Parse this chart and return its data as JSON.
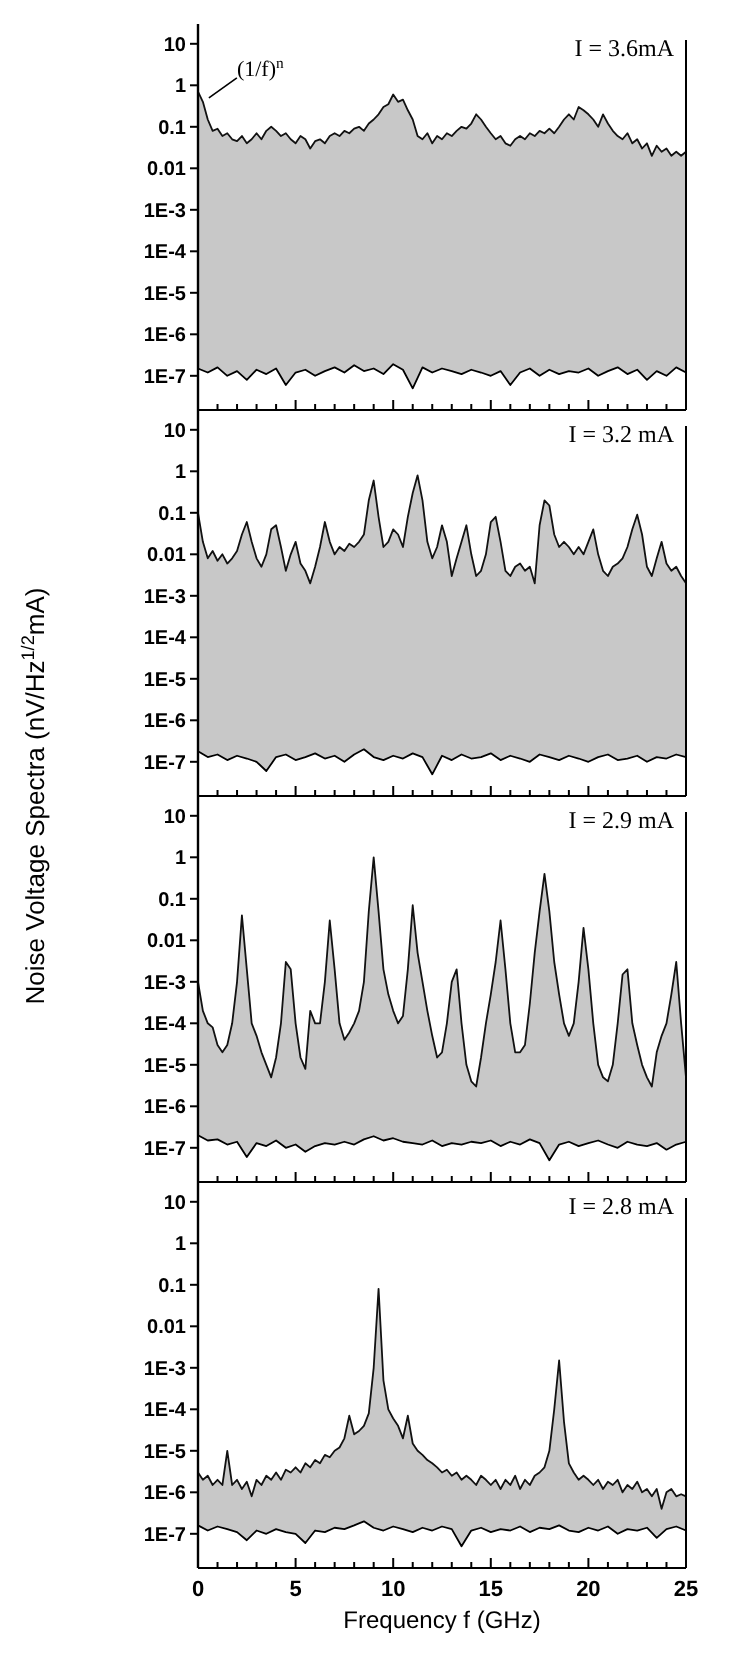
{
  "chart_data": [
    {
      "type": "area",
      "title": "I = 3.6mA",
      "log": "y",
      "tick_labels": "y",
      "xlim": [
        0,
        25
      ],
      "ylim": [
        1.5e-08,
        30
      ],
      "xticks": [
        0,
        {
          "value": 1,
          "label": null
        },
        {
          "value": 2,
          "label": null
        },
        {
          "value": 3,
          "label": null
        },
        {
          "value": 4,
          "label": null
        },
        5,
        {
          "value": 6,
          "label": null
        },
        {
          "value": 7,
          "label": null
        },
        {
          "value": 8,
          "label": null
        },
        {
          "value": 9,
          "label": null
        },
        10,
        {
          "value": 11,
          "label": null
        },
        {
          "value": 12,
          "label": null
        },
        {
          "value": 13,
          "label": null
        },
        {
          "value": 14,
          "label": null
        },
        15,
        {
          "value": 16,
          "label": null
        },
        {
          "value": 17,
          "label": null
        },
        {
          "value": 18,
          "label": null
        },
        {
          "value": 19,
          "label": null
        },
        20,
        {
          "value": 21,
          "label": null
        },
        {
          "value": 22,
          "label": null
        },
        {
          "value": 23,
          "label": null
        },
        {
          "value": 24,
          "label": null
        },
        25
      ],
      "yticks": [
        10,
        1,
        0.1,
        0.01,
        {
          "value": 0.001,
          "label": "1E-3"
        },
        {
          "value": 0.0001,
          "label": "1E-4"
        },
        {
          "value": 1e-05,
          "label": "1E-5"
        },
        {
          "value": 1e-06,
          "label": "1E-6"
        },
        {
          "value": 1e-07,
          "label": "1E-7"
        }
      ],
      "annotations": [
        {
          "text": "(1/f)$^{n}$",
          "x": 0.25,
          "y": 0.4
        }
      ],
      "x": [
        0,
        0.25,
        0.5,
        0.75,
        1,
        1.25,
        1.5,
        1.75,
        2,
        2.25,
        2.5,
        2.75,
        3,
        3.25,
        3.5,
        3.75,
        4,
        4.25,
        4.5,
        4.75,
        5,
        5.25,
        5.5,
        5.75,
        6,
        6.25,
        6.5,
        6.75,
        7,
        7.25,
        7.5,
        7.75,
        8,
        8.25,
        8.5,
        8.75,
        9,
        9.25,
        9.5,
        9.75,
        10,
        10.25,
        10.5,
        10.75,
        11,
        11.25,
        11.5,
        11.75,
        12,
        12.25,
        12.5,
        12.75,
        13,
        13.25,
        13.5,
        13.75,
        14,
        14.25,
        14.5,
        14.75,
        15,
        15.25,
        15.5,
        15.75,
        16,
        16.25,
        16.5,
        16.75,
        17,
        17.25,
        17.5,
        17.75,
        18,
        18.25,
        18.5,
        18.75,
        19,
        19.25,
        19.5,
        19.75,
        20,
        20.25,
        20.5,
        20.75,
        21,
        21.25,
        21.5,
        21.75,
        22,
        22.25,
        22.5,
        22.75,
        23,
        23.25,
        23.5,
        23.75,
        24,
        24.25,
        24.5,
        24.75,
        25
      ],
      "series": [
        {
          "color": "#c8c8c8",
          "values": [
            0.7,
            0.4,
            0.15,
            0.08,
            0.09,
            0.06,
            0.07,
            0.05,
            0.045,
            0.06,
            0.04,
            0.05,
            0.07,
            0.05,
            0.08,
            0.1,
            0.08,
            0.06,
            0.07,
            0.05,
            0.04,
            0.06,
            0.05,
            0.03,
            0.045,
            0.05,
            0.04,
            0.06,
            0.07,
            0.06,
            0.08,
            0.07,
            0.09,
            0.1,
            0.08,
            0.12,
            0.15,
            0.2,
            0.3,
            0.35,
            0.6,
            0.4,
            0.45,
            0.25,
            0.15,
            0.06,
            0.05,
            0.07,
            0.04,
            0.06,
            0.05,
            0.07,
            0.06,
            0.08,
            0.1,
            0.09,
            0.12,
            0.2,
            0.15,
            0.1,
            0.07,
            0.05,
            0.06,
            0.04,
            0.035,
            0.05,
            0.06,
            0.05,
            0.07,
            0.06,
            0.08,
            0.07,
            0.09,
            0.07,
            0.1,
            0.15,
            0.2,
            0.15,
            0.3,
            0.25,
            0.2,
            0.15,
            0.1,
            0.2,
            0.12,
            0.08,
            0.06,
            0.05,
            0.07,
            0.04,
            0.05,
            0.03,
            0.04,
            0.02,
            0.035,
            0.025,
            0.03,
            0.02,
            0.025,
            0.02,
            0.025
          ]
        },
        {
          "type": "line",
          "color": "#000000",
          "x": [
            0,
            0.5,
            1,
            1.5,
            2,
            2.5,
            3,
            3.5,
            4,
            4.5,
            5,
            5.5,
            6,
            6.5,
            7,
            7.5,
            8,
            8.5,
            9,
            9.5,
            10,
            10.5,
            11,
            11.5,
            12,
            12.5,
            13,
            13.5,
            14,
            14.5,
            15,
            15.5,
            16,
            16.5,
            17,
            17.5,
            18,
            18.5,
            19,
            19.5,
            20,
            20.5,
            21,
            21.5,
            22,
            22.5,
            23,
            23.5,
            24,
            24.5,
            25
          ],
          "values": [
            1.5e-07,
            1.2e-07,
            1.6e-07,
            1e-07,
            1.3e-07,
            8e-08,
            1.4e-07,
            1.1e-07,
            1.5e-07,
            6e-08,
            1.2e-07,
            1.4e-07,
            1e-07,
            1.3e-07,
            1.6e-07,
            1.2e-07,
            1.8e-07,
            1.3e-07,
            1.5e-07,
            1.1e-07,
            1.9e-07,
            1.4e-07,
            5e-08,
            1.6e-07,
            1.2e-07,
            1.5e-07,
            1.3e-07,
            1.1e-07,
            1.4e-07,
            1.2e-07,
            1e-07,
            1.3e-07,
            6e-08,
            1.2e-07,
            1.5e-07,
            1e-07,
            1.4e-07,
            1.1e-07,
            1.3e-07,
            1.2e-07,
            1.5e-07,
            1e-07,
            1.3e-07,
            1.6e-07,
            1.1e-07,
            1.4e-07,
            8e-08,
            1.3e-07,
            1e-07,
            1.6e-07,
            1.2e-07
          ]
        }
      ]
    },
    {
      "type": "area",
      "title": "I = 3.2 mA",
      "ylabel": "Noise Voltage Spectra  (nV/Hz$^{1/2}$mA)",
      "log": "y",
      "tick_labels": "y",
      "xlim": [
        0,
        25
      ],
      "ylim": [
        1.5e-08,
        30
      ],
      "xticks": [
        0,
        {
          "value": 1,
          "label": null
        },
        {
          "value": 2,
          "label": null
        },
        {
          "value": 3,
          "label": null
        },
        {
          "value": 4,
          "label": null
        },
        5,
        {
          "value": 6,
          "label": null
        },
        {
          "value": 7,
          "label": null
        },
        {
          "value": 8,
          "label": null
        },
        {
          "value": 9,
          "label": null
        },
        10,
        {
          "value": 11,
          "label": null
        },
        {
          "value": 12,
          "label": null
        },
        {
          "value": 13,
          "label": null
        },
        {
          "value": 14,
          "label": null
        },
        15,
        {
          "value": 16,
          "label": null
        },
        {
          "value": 17,
          "label": null
        },
        {
          "value": 18,
          "label": null
        },
        {
          "value": 19,
          "label": null
        },
        20,
        {
          "value": 21,
          "label": null
        },
        {
          "value": 22,
          "label": null
        },
        {
          "value": 23,
          "label": null
        },
        {
          "value": 24,
          "label": null
        },
        25
      ],
      "yticks": [
        10,
        1,
        0.1,
        0.01,
        {
          "value": 0.001,
          "label": "1E-3"
        },
        {
          "value": 0.0001,
          "label": "1E-4"
        },
        {
          "value": 1e-05,
          "label": "1E-5"
        },
        {
          "value": 1e-06,
          "label": "1E-6"
        },
        {
          "value": 1e-07,
          "label": "1E-7"
        }
      ],
      "x": [
        0,
        0.25,
        0.5,
        0.75,
        1,
        1.25,
        1.5,
        1.75,
        2,
        2.25,
        2.5,
        2.75,
        3,
        3.25,
        3.5,
        3.75,
        4,
        4.25,
        4.5,
        4.75,
        5,
        5.25,
        5.5,
        5.75,
        6,
        6.25,
        6.5,
        6.75,
        7,
        7.25,
        7.5,
        7.75,
        8,
        8.25,
        8.5,
        8.75,
        9,
        9.25,
        9.5,
        9.75,
        10,
        10.25,
        10.5,
        10.75,
        11,
        11.25,
        11.5,
        11.75,
        12,
        12.25,
        12.5,
        12.75,
        13,
        13.25,
        13.5,
        13.75,
        14,
        14.25,
        14.5,
        14.75,
        15,
        15.25,
        15.5,
        15.75,
        16,
        16.25,
        16.5,
        16.75,
        17,
        17.25,
        17.5,
        17.75,
        18,
        18.25,
        18.5,
        18.75,
        19,
        19.25,
        19.5,
        19.75,
        20,
        20.25,
        20.5,
        20.75,
        21,
        21.25,
        21.5,
        21.75,
        22,
        22.25,
        22.5,
        22.75,
        23,
        23.25,
        23.5,
        23.75,
        24,
        24.25,
        24.5,
        24.75,
        25
      ],
      "series": [
        {
          "color": "#c8c8c8",
          "values": [
            0.1,
            0.02,
            0.008,
            0.012,
            0.007,
            0.01,
            0.006,
            0.008,
            0.012,
            0.03,
            0.06,
            0.02,
            0.008,
            0.005,
            0.01,
            0.04,
            0.05,
            0.015,
            0.004,
            0.01,
            0.02,
            0.006,
            0.004,
            0.002,
            0.005,
            0.015,
            0.06,
            0.02,
            0.01,
            0.015,
            0.012,
            0.018,
            0.015,
            0.02,
            0.03,
            0.2,
            0.6,
            0.08,
            0.015,
            0.02,
            0.04,
            0.03,
            0.015,
            0.08,
            0.3,
            0.8,
            0.2,
            0.02,
            0.008,
            0.015,
            0.05,
            0.02,
            0.003,
            0.008,
            0.02,
            0.05,
            0.01,
            0.003,
            0.004,
            0.01,
            0.06,
            0.08,
            0.02,
            0.004,
            0.003,
            0.005,
            0.006,
            0.004,
            0.005,
            0.002,
            0.05,
            0.2,
            0.15,
            0.03,
            0.015,
            0.02,
            0.015,
            0.01,
            0.015,
            0.01,
            0.02,
            0.04,
            0.01,
            0.004,
            0.003,
            0.005,
            0.006,
            0.008,
            0.015,
            0.04,
            0.09,
            0.03,
            0.005,
            0.003,
            0.008,
            0.02,
            0.006,
            0.004,
            0.005,
            0.003,
            0.002
          ]
        },
        {
          "type": "line",
          "color": "#000000",
          "x": [
            0,
            0.5,
            1,
            1.5,
            2,
            2.5,
            3,
            3.5,
            4,
            4.5,
            5,
            5.5,
            6,
            6.5,
            7,
            7.5,
            8,
            8.5,
            9,
            9.5,
            10,
            10.5,
            11,
            11.5,
            12,
            12.5,
            13,
            13.5,
            14,
            14.5,
            15,
            15.5,
            16,
            16.5,
            17,
            17.5,
            18,
            18.5,
            19,
            19.5,
            20,
            20.5,
            21,
            21.5,
            22,
            22.5,
            23,
            23.5,
            24,
            24.5,
            25
          ],
          "values": [
            1.8e-07,
            1.3e-07,
            1.5e-07,
            1.1e-07,
            1.4e-07,
            1.2e-07,
            1e-07,
            6e-08,
            1.3e-07,
            1.5e-07,
            1.1e-07,
            1.3e-07,
            1.6e-07,
            1.2e-07,
            1.4e-07,
            1e-07,
            1.5e-07,
            2e-07,
            1.3e-07,
            1.1e-07,
            1.4e-07,
            1.2e-07,
            1.6e-07,
            1.3e-07,
            5e-08,
            1.4e-07,
            1.1e-07,
            1.5e-07,
            1.2e-07,
            1.3e-07,
            1.6e-07,
            1.1e-07,
            1.4e-07,
            1.2e-07,
            1e-07,
            1.5e-07,
            1.3e-07,
            1.1e-07,
            1.4e-07,
            1.2e-07,
            1e-07,
            1.3e-07,
            1.5e-07,
            1.1e-07,
            1.2e-07,
            1.4e-07,
            1e-07,
            1.3e-07,
            1.2e-07,
            1.5e-07,
            1.3e-07
          ]
        }
      ]
    },
    {
      "type": "area",
      "title": "I = 2.9 mA",
      "log": "y",
      "tick_labels": "y",
      "xlim": [
        0,
        25
      ],
      "ylim": [
        1.5e-08,
        30
      ],
      "xticks": [
        0,
        {
          "value": 1,
          "label": null
        },
        {
          "value": 2,
          "label": null
        },
        {
          "value": 3,
          "label": null
        },
        {
          "value": 4,
          "label": null
        },
        5,
        {
          "value": 6,
          "label": null
        },
        {
          "value": 7,
          "label": null
        },
        {
          "value": 8,
          "label": null
        },
        {
          "value": 9,
          "label": null
        },
        10,
        {
          "value": 11,
          "label": null
        },
        {
          "value": 12,
          "label": null
        },
        {
          "value": 13,
          "label": null
        },
        {
          "value": 14,
          "label": null
        },
        15,
        {
          "value": 16,
          "label": null
        },
        {
          "value": 17,
          "label": null
        },
        {
          "value": 18,
          "label": null
        },
        {
          "value": 19,
          "label": null
        },
        20,
        {
          "value": 21,
          "label": null
        },
        {
          "value": 22,
          "label": null
        },
        {
          "value": 23,
          "label": null
        },
        {
          "value": 24,
          "label": null
        },
        25
      ],
      "yticks": [
        10,
        1,
        0.1,
        0.01,
        {
          "value": 0.001,
          "label": "1E-3"
        },
        {
          "value": 0.0001,
          "label": "1E-4"
        },
        {
          "value": 1e-05,
          "label": "1E-5"
        },
        {
          "value": 1e-06,
          "label": "1E-6"
        },
        {
          "value": 1e-07,
          "label": "1E-7"
        }
      ],
      "x": [
        0,
        0.25,
        0.5,
        0.75,
        1,
        1.25,
        1.5,
        1.75,
        2,
        2.25,
        2.5,
        2.75,
        3,
        3.25,
        3.5,
        3.75,
        4,
        4.25,
        4.5,
        4.75,
        5,
        5.25,
        5.5,
        5.75,
        6,
        6.25,
        6.5,
        6.75,
        7,
        7.25,
        7.5,
        7.75,
        8,
        8.25,
        8.5,
        8.75,
        9,
        9.25,
        9.5,
        9.75,
        10,
        10.25,
        10.5,
        10.75,
        11,
        11.25,
        11.5,
        11.75,
        12,
        12.25,
        12.5,
        12.75,
        13,
        13.25,
        13.5,
        13.75,
        14,
        14.25,
        14.5,
        14.75,
        15,
        15.25,
        15.5,
        15.75,
        16,
        16.25,
        16.5,
        16.75,
        17,
        17.25,
        17.5,
        17.75,
        18,
        18.25,
        18.5,
        18.75,
        19,
        19.25,
        19.5,
        19.75,
        20,
        20.25,
        20.5,
        20.75,
        21,
        21.25,
        21.5,
        21.75,
        22,
        22.25,
        22.5,
        22.75,
        23,
        23.25,
        23.5,
        23.75,
        24,
        24.25,
        24.5,
        24.75,
        25
      ],
      "series": [
        {
          "color": "#c8c8c8",
          "values": [
            0.001,
            0.0002,
            0.0001,
            8e-05,
            3e-05,
            2e-05,
            3e-05,
            0.0001,
            0.001,
            0.04,
            0.002,
            0.0001,
            5e-05,
            2e-05,
            1e-05,
            5e-06,
            1.5e-05,
            0.0001,
            0.003,
            0.002,
            0.0001,
            1.5e-05,
            8e-06,
            0.0002,
            0.0001,
            0.0001,
            0.001,
            0.03,
            0.002,
            0.0001,
            4e-05,
            6e-05,
            0.0001,
            0.0002,
            0.001,
            0.05,
            1,
            0.05,
            0.002,
            0.0005,
            0.0002,
            0.0001,
            0.00015,
            0.002,
            0.07,
            0.005,
            0.001,
            0.0002,
            5e-05,
            1.5e-05,
            2e-05,
            0.0001,
            0.001,
            0.002,
            0.0001,
            1e-05,
            4e-06,
            3e-06,
            1.5e-05,
            0.0001,
            0.0005,
            0.003,
            0.03,
            0.002,
            0.0001,
            2e-05,
            2e-05,
            3e-05,
            0.0003,
            0.005,
            0.05,
            0.4,
            0.05,
            0.003,
            0.0005,
            0.0001,
            5e-05,
            0.0001,
            0.001,
            0.02,
            0.002,
            0.0001,
            1e-05,
            5e-06,
            4e-06,
            1e-05,
            0.0001,
            0.0015,
            0.002,
            0.0001,
            3e-05,
            1e-05,
            5e-06,
            3e-06,
            2e-05,
            5e-05,
            0.0001,
            0.0005,
            0.003,
            0.0001,
            5e-06
          ]
        },
        {
          "type": "line",
          "color": "#000000",
          "x": [
            0,
            0.5,
            1,
            1.5,
            2,
            2.5,
            3,
            3.5,
            4,
            4.5,
            5,
            5.5,
            6,
            6.5,
            7,
            7.5,
            8,
            8.5,
            9,
            9.5,
            10,
            10.5,
            11,
            11.5,
            12,
            12.5,
            13,
            13.5,
            14,
            14.5,
            15,
            15.5,
            16,
            16.5,
            17,
            17.5,
            18,
            18.5,
            19,
            19.5,
            20,
            20.5,
            21,
            21.5,
            22,
            22.5,
            23,
            23.5,
            24,
            24.5,
            25
          ],
          "values": [
            2e-07,
            1.5e-07,
            1.6e-07,
            1.2e-07,
            1.4e-07,
            6e-08,
            1.3e-07,
            1.1e-07,
            1.5e-07,
            1e-07,
            1.2e-07,
            8e-08,
            1.1e-07,
            1.3e-07,
            1.2e-07,
            1.4e-07,
            1.2e-07,
            1.6e-07,
            1.9e-07,
            1.5e-07,
            1.7e-07,
            1.4e-07,
            1.3e-07,
            1.2e-07,
            1.5e-07,
            1.1e-07,
            1.3e-07,
            1.2e-07,
            1.4e-07,
            1.3e-07,
            1.5e-07,
            1.1e-07,
            1.4e-07,
            1.2e-07,
            1.6e-07,
            1.3e-07,
            5e-08,
            1.2e-07,
            1.4e-07,
            1.1e-07,
            1.3e-07,
            1.5e-07,
            1.2e-07,
            1e-07,
            1.4e-07,
            1.2e-07,
            1.1e-07,
            1.3e-07,
            9e-08,
            1.2e-07,
            1.4e-07
          ]
        }
      ]
    },
    {
      "type": "area",
      "title": "I = 2.8 mA",
      "xlabel": "Frequency f (GHz)",
      "log": "y",
      "xlim": [
        0,
        25
      ],
      "ylim": [
        1.5e-08,
        30
      ],
      "xticks": [
        0,
        {
          "value": 1,
          "label": null
        },
        {
          "value": 2,
          "label": null
        },
        {
          "value": 3,
          "label": null
        },
        {
          "value": 4,
          "label": null
        },
        5,
        {
          "value": 6,
          "label": null
        },
        {
          "value": 7,
          "label": null
        },
        {
          "value": 8,
          "label": null
        },
        {
          "value": 9,
          "label": null
        },
        10,
        {
          "value": 11,
          "label": null
        },
        {
          "value": 12,
          "label": null
        },
        {
          "value": 13,
          "label": null
        },
        {
          "value": 14,
          "label": null
        },
        15,
        {
          "value": 16,
          "label": null
        },
        {
          "value": 17,
          "label": null
        },
        {
          "value": 18,
          "label": null
        },
        {
          "value": 19,
          "label": null
        },
        20,
        {
          "value": 21,
          "label": null
        },
        {
          "value": 22,
          "label": null
        },
        {
          "value": 23,
          "label": null
        },
        {
          "value": 24,
          "label": null
        },
        25
      ],
      "yticks": [
        10,
        1,
        0.1,
        0.01,
        {
          "value": 0.001,
          "label": "1E-3"
        },
        {
          "value": 0.0001,
          "label": "1E-4"
        },
        {
          "value": 1e-05,
          "label": "1E-5"
        },
        {
          "value": 1e-06,
          "label": "1E-6"
        },
        {
          "value": 1e-07,
          "label": "1E-7"
        }
      ],
      "x": [
        0,
        0.25,
        0.5,
        0.75,
        1,
        1.25,
        1.5,
        1.75,
        2,
        2.25,
        2.5,
        2.75,
        3,
        3.25,
        3.5,
        3.75,
        4,
        4.25,
        4.5,
        4.75,
        5,
        5.25,
        5.5,
        5.75,
        6,
        6.25,
        6.5,
        6.75,
        7,
        7.25,
        7.5,
        7.75,
        8,
        8.25,
        8.5,
        8.75,
        9,
        9.25,
        9.5,
        9.75,
        10,
        10.25,
        10.5,
        10.75,
        11,
        11.25,
        11.5,
        11.75,
        12,
        12.25,
        12.5,
        12.75,
        13,
        13.25,
        13.5,
        13.75,
        14,
        14.25,
        14.5,
        14.75,
        15,
        15.25,
        15.5,
        15.75,
        16,
        16.25,
        16.5,
        16.75,
        17,
        17.25,
        17.5,
        17.75,
        18,
        18.25,
        18.5,
        18.75,
        19,
        19.25,
        19.5,
        19.75,
        20,
        20.25,
        20.5,
        20.75,
        21,
        21.25,
        21.5,
        21.75,
        22,
        22.25,
        22.5,
        22.75,
        23,
        23.25,
        23.5,
        23.75,
        24,
        24.25,
        24.5,
        24.75,
        25
      ],
      "series": [
        {
          "color": "#c8c8c8",
          "values": [
            3e-06,
            2e-06,
            2.5e-06,
            1.5e-06,
            2e-06,
            1.5e-06,
            1e-05,
            1.5e-06,
            2e-06,
            1.2e-06,
            1.8e-06,
            8e-07,
            2e-06,
            1.5e-06,
            2.5e-06,
            2e-06,
            3e-06,
            2e-06,
            3.5e-06,
            3e-06,
            4e-06,
            3e-06,
            5e-06,
            4e-06,
            6e-06,
            5e-06,
            8e-06,
            7e-06,
            1e-05,
            1.2e-05,
            2e-05,
            7e-05,
            2.5e-05,
            3e-05,
            4e-05,
            8e-05,
            0.001,
            0.08,
            0.0005,
            0.0001,
            6e-05,
            4e-05,
            2e-05,
            7e-05,
            1.5e-05,
            1e-05,
            8e-06,
            6e-06,
            5e-06,
            4e-06,
            3e-06,
            3.5e-06,
            2.5e-06,
            3e-06,
            2e-06,
            2.5e-06,
            2e-06,
            1.5e-06,
            2.5e-06,
            2e-06,
            1.5e-06,
            2e-06,
            1.2e-06,
            2e-06,
            1.5e-06,
            2.5e-06,
            1.2e-06,
            2e-06,
            1.5e-06,
            2.5e-06,
            3e-06,
            4e-06,
            1e-05,
            0.0001,
            0.0015,
            5e-05,
            5e-06,
            3e-06,
            2e-06,
            2.5e-06,
            2e-06,
            1.5e-06,
            2e-06,
            1.2e-06,
            1.8e-06,
            1.5e-06,
            2e-06,
            1e-06,
            1.5e-06,
            1.2e-06,
            1.8e-06,
            1e-06,
            1.2e-06,
            8e-07,
            1.2e-06,
            4e-07,
            1e-06,
            1.2e-06,
            8e-07,
            9e-07,
            8e-07
          ]
        },
        {
          "type": "line",
          "color": "#000000",
          "x": [
            0,
            0.5,
            1,
            1.5,
            2,
            2.5,
            3,
            3.5,
            4,
            4.5,
            5,
            5.5,
            6,
            6.5,
            7,
            7.5,
            8,
            8.5,
            9,
            9.5,
            10,
            10.5,
            11,
            11.5,
            12,
            12.5,
            13,
            13.5,
            14,
            14.5,
            15,
            15.5,
            16,
            16.5,
            17,
            17.5,
            18,
            18.5,
            19,
            19.5,
            20,
            20.5,
            21,
            21.5,
            22,
            22.5,
            23,
            23.5,
            24,
            24.5,
            25
          ],
          "values": [
            1.6e-07,
            1.2e-07,
            1.5e-07,
            1.3e-07,
            1.1e-07,
            7e-08,
            1.2e-07,
            1e-07,
            1.3e-07,
            1.1e-07,
            1e-07,
            6e-08,
            1.2e-07,
            1.1e-07,
            1.4e-07,
            1.3e-07,
            1.6e-07,
            2e-07,
            1.4e-07,
            1.2e-07,
            1.5e-07,
            1.3e-07,
            1.1e-07,
            1.4e-07,
            1.2e-07,
            1.5e-07,
            1.3e-07,
            5e-08,
            1.2e-07,
            1.4e-07,
            1.1e-07,
            1.3e-07,
            1.2e-07,
            1.5e-07,
            1.1e-07,
            1.4e-07,
            1.3e-07,
            1.6e-07,
            1.2e-07,
            1.1e-07,
            1.4e-07,
            1.2e-07,
            1.5e-07,
            1e-07,
            1.3e-07,
            1.2e-07,
            1.4e-07,
            8e-08,
            1.3e-07,
            1.5e-07,
            1.2e-07
          ]
        }
      ]
    }
  ]
}
